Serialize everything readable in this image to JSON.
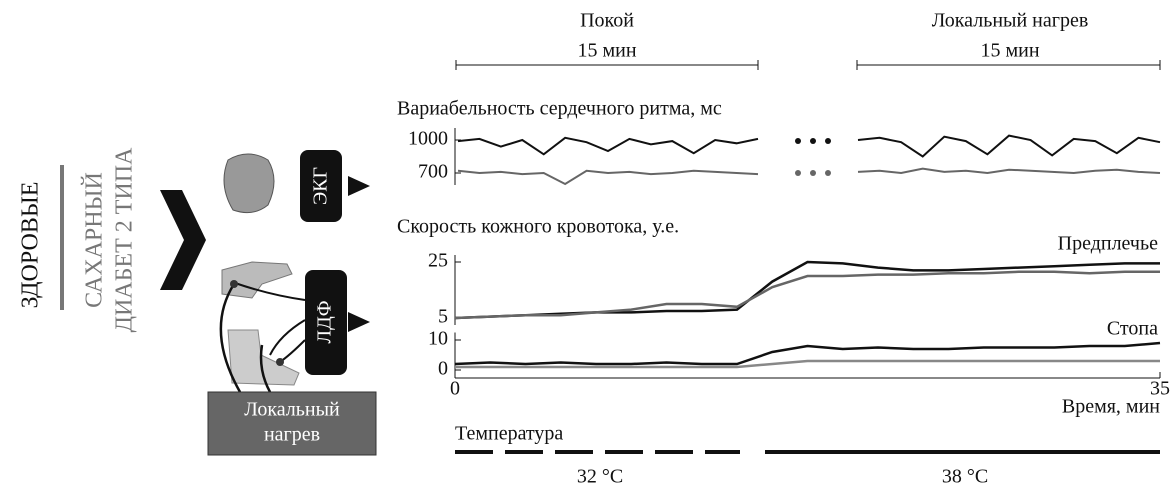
{
  "header": {
    "rest": {
      "title": "Покой",
      "duration": "15 мин"
    },
    "heating": {
      "title": "Локальный нагрев",
      "duration": "15 мин"
    }
  },
  "groups": {
    "healthy": "ЗДОРОВЫЕ",
    "diabetes": [
      "САХАРНЫЙ",
      "ДИАБЕТ 2 ТИПА"
    ]
  },
  "devices": {
    "ecg": "ЭКГ",
    "ldf": "ЛДФ",
    "heating": [
      "Локальный",
      "нагрев"
    ]
  },
  "hrv": {
    "title": "Вариабельность сердечного ритма, мс",
    "ylim": [
      550,
      1150
    ],
    "yticks": [
      1000,
      700
    ],
    "series": [
      {
        "color": "#111111",
        "rest": [
          990,
          1010,
          940,
          1000,
          870,
          1020,
          980,
          900,
          1010,
          960,
          990,
          880,
          1000,
          970,
          1010
        ],
        "heating": [
          1000,
          1020,
          980,
          850,
          1030,
          990,
          870,
          1040,
          1000,
          860,
          1010,
          990,
          880,
          1020,
          980
        ]
      },
      {
        "color": "#666666",
        "rest": [
          720,
          700,
          710,
          690,
          700,
          600,
          720,
          700,
          710,
          690,
          700,
          720,
          710,
          700,
          690
        ],
        "heating": [
          710,
          720,
          700,
          740,
          710,
          720,
          700,
          730,
          720,
          710,
          700,
          720,
          730,
          710,
          700
        ]
      }
    ]
  },
  "flow": {
    "title": "Скорость кожного кровотока, у.е.",
    "xlabel": "Время, мин",
    "xlim": [
      0,
      35
    ],
    "xticks": [
      0,
      35
    ],
    "x": [
      0,
      1.75,
      3.5,
      5.25,
      7,
      8.75,
      10.5,
      12.25,
      14,
      15.75,
      17.5,
      19.25,
      21,
      22.75,
      24.5,
      26.25,
      28,
      29.75,
      31.5,
      33.25,
      35
    ],
    "panels": [
      {
        "label": "Предплечье",
        "ylim": [
          2.5,
          27.5
        ],
        "yticks": [
          5,
          25
        ],
        "series": [
          {
            "color": "#111111",
            "values": [
              5,
              5.5,
              6,
              6.5,
              7,
              7,
              7.5,
              7.5,
              8,
              18,
              25,
              24.5,
              23,
              22,
              22,
              22.5,
              23,
              23.5,
              24,
              24.5,
              24.5
            ]
          },
          {
            "color": "#666666",
            "values": [
              5,
              5.5,
              6,
              6,
              7,
              8,
              10,
              10,
              9,
              16,
              20,
              20,
              20.5,
              20.5,
              21,
              21,
              21.5,
              21.5,
              21,
              21.5,
              21.5
            ]
          }
        ]
      },
      {
        "label": "Стопа",
        "ylim": [
          -2.5,
          12.5
        ],
        "yticks": [
          0,
          10
        ],
        "series": [
          {
            "color": "#111111",
            "values": [
              2,
              2.5,
              2,
              2.5,
              2,
              2,
              2.5,
              2,
              2,
              6,
              8,
              7,
              7.5,
              7,
              7,
              7.5,
              7.5,
              7.5,
              8,
              8,
              9
            ]
          },
          {
            "color": "#888888",
            "values": [
              1,
              1,
              1,
              1,
              1,
              1,
              1,
              1,
              1,
              2,
              3,
              3,
              3,
              3,
              3,
              3,
              3,
              3,
              3,
              3,
              3
            ]
          }
        ]
      }
    ]
  },
  "temperature": {
    "title": "Температура",
    "phases": [
      "32 °C",
      "38 °C"
    ]
  }
}
